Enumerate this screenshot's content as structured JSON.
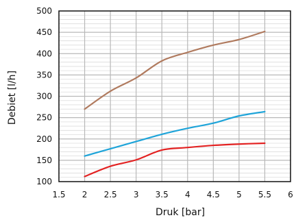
{
  "chart_data": {
    "type": "line",
    "xlabel": "Druk [bar]",
    "ylabel": "Debiet [l/h]",
    "xlim": [
      1.5,
      6
    ],
    "ylim": [
      100,
      500
    ],
    "xticks": [
      "1.5",
      "2",
      "2.5",
      "3",
      "3.5",
      "4",
      "4.5",
      "5",
      "5.5",
      "6"
    ],
    "yticks": [
      "100",
      "150",
      "200",
      "250",
      "300",
      "350",
      "400",
      "450",
      "500"
    ],
    "grid": true,
    "series": [
      {
        "color": "#b07a5e",
        "x": [
          2,
          2.5,
          3,
          3.5,
          4,
          4.5,
          5,
          5.5
        ],
        "y": [
          270,
          312,
          343,
          383,
          403,
          420,
          433,
          452
        ]
      },
      {
        "color": "#1ea4d9",
        "x": [
          2,
          2.5,
          3,
          3.5,
          4,
          4.5,
          5,
          5.5
        ],
        "y": [
          160,
          177,
          194,
          211,
          225,
          237,
          254,
          264
        ]
      },
      {
        "color": "#e32222",
        "x": [
          2,
          2.5,
          3,
          3.5,
          4,
          4.5,
          5,
          5.5
        ],
        "y": [
          112,
          136,
          151,
          174,
          180,
          185,
          188,
          190
        ]
      }
    ]
  }
}
